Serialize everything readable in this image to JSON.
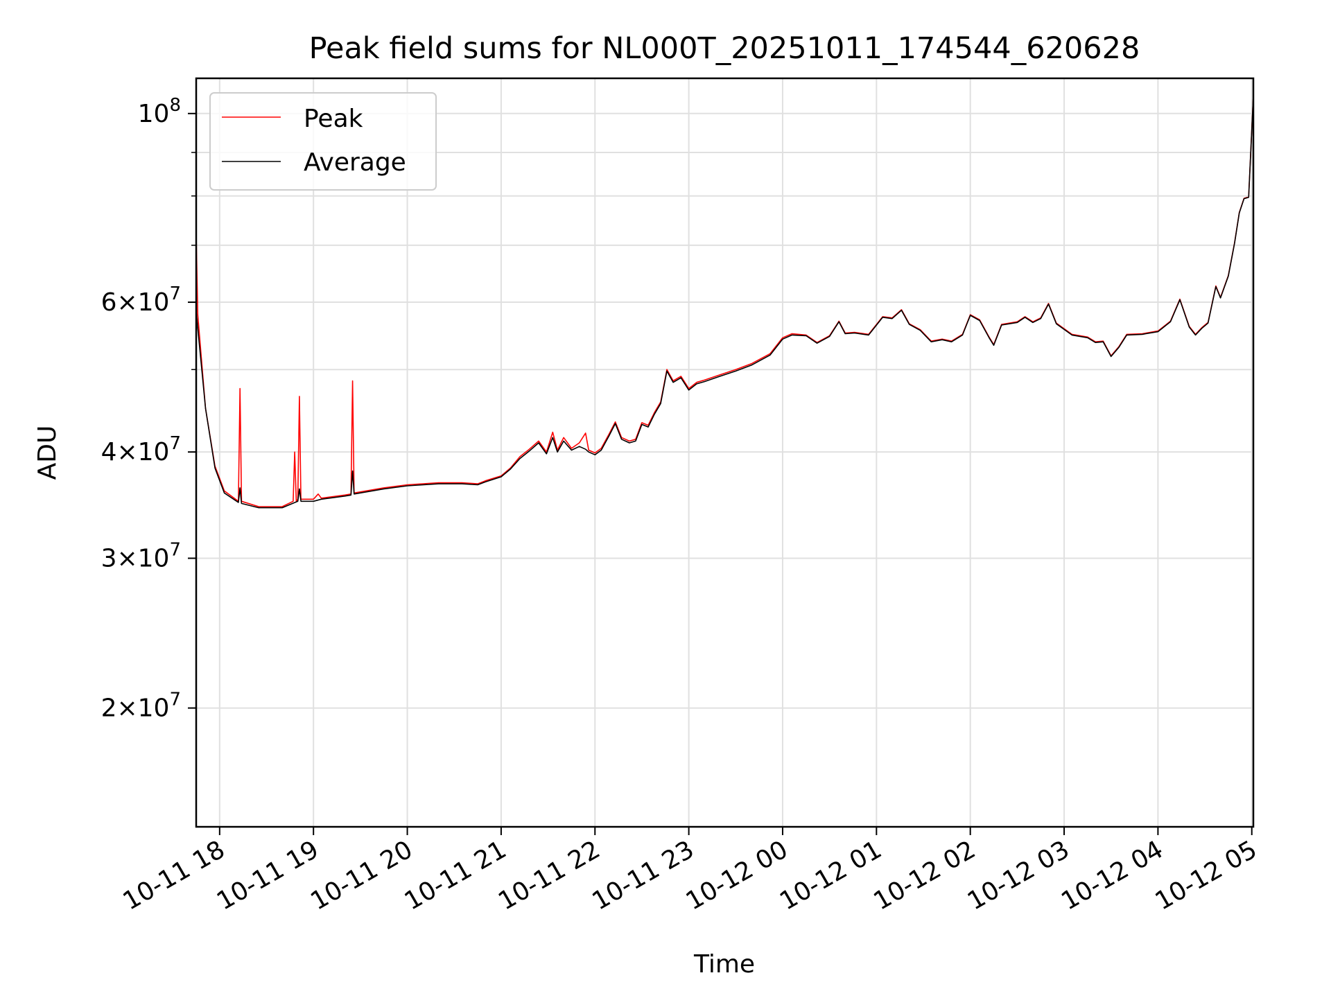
{
  "chart_data": {
    "type": "line",
    "title": "Peak field sums for NL000T_20251011_174544_620628",
    "xlabel": "Time",
    "ylabel": "ADU",
    "yscale": "log",
    "ylim": [
      14500000,
      110000000
    ],
    "xlim": [
      "2025-10-11 17:45",
      "2025-10-12 05:01"
    ],
    "grid": true,
    "legend_position": "top-left",
    "x_ticks": [
      {
        "t": "2025-10-11 18:00",
        "label": "10-11 18"
      },
      {
        "t": "2025-10-11 19:00",
        "label": "10-11 19"
      },
      {
        "t": "2025-10-11 20:00",
        "label": "10-11 20"
      },
      {
        "t": "2025-10-11 21:00",
        "label": "10-11 21"
      },
      {
        "t": "2025-10-11 22:00",
        "label": "10-11 22"
      },
      {
        "t": "2025-10-11 23:00",
        "label": "10-11 23"
      },
      {
        "t": "2025-10-12 00:00",
        "label": "10-12 00"
      },
      {
        "t": "2025-10-12 01:00",
        "label": "10-12 01"
      },
      {
        "t": "2025-10-12 02:00",
        "label": "10-12 02"
      },
      {
        "t": "2025-10-12 03:00",
        "label": "10-12 03"
      },
      {
        "t": "2025-10-12 04:00",
        "label": "10-12 04"
      },
      {
        "t": "2025-10-12 05:00",
        "label": "10-12 05"
      }
    ],
    "y_ticks": [
      {
        "value": 20000000,
        "mantissa": "2",
        "base": "10",
        "exp": "7"
      },
      {
        "value": 30000000,
        "mantissa": "3",
        "base": "10",
        "exp": "7"
      },
      {
        "value": 40000000,
        "mantissa": "4",
        "base": "10",
        "exp": "7"
      },
      {
        "value": 60000000,
        "mantissa": "6",
        "base": "10",
        "exp": "7"
      },
      {
        "value": 100000000,
        "mantissa": "",
        "base": "10",
        "exp": "8"
      }
    ],
    "series": [
      {
        "name": "Peak",
        "color": "#ff0000",
        "points": [
          [
            "2025-10-11 17:45",
            60000000
          ],
          [
            "2025-10-11 17:45",
            72000000
          ],
          [
            "2025-10-11 17:46",
            58000000
          ],
          [
            "2025-10-11 17:51",
            45000000
          ],
          [
            "2025-10-11 17:57",
            38500000
          ],
          [
            "2025-10-11 18:03",
            36000000
          ],
          [
            "2025-10-11 18:12",
            35000000
          ],
          [
            "2025-10-11 18:13",
            47500000
          ],
          [
            "2025-10-11 18:14",
            35000000
          ],
          [
            "2025-10-11 18:25",
            34500000
          ],
          [
            "2025-10-11 18:40",
            34500000
          ],
          [
            "2025-10-11 18:47",
            35000000
          ],
          [
            "2025-10-11 18:48",
            40000000
          ],
          [
            "2025-10-11 18:49",
            35000000
          ],
          [
            "2025-10-11 18:50",
            35200000
          ],
          [
            "2025-10-11 18:51",
            46500000
          ],
          [
            "2025-10-11 18:52",
            35200000
          ],
          [
            "2025-10-11 19:00",
            35200000
          ],
          [
            "2025-10-11 19:03",
            35700000
          ],
          [
            "2025-10-11 19:05",
            35300000
          ],
          [
            "2025-10-11 19:20",
            35600000
          ],
          [
            "2025-10-11 19:24",
            35700000
          ],
          [
            "2025-10-11 19:25",
            48500000
          ],
          [
            "2025-10-11 19:26",
            35800000
          ],
          [
            "2025-10-11 19:45",
            36300000
          ],
          [
            "2025-10-11 20:00",
            36600000
          ],
          [
            "2025-10-11 20:20",
            36800000
          ],
          [
            "2025-10-11 20:35",
            36800000
          ],
          [
            "2025-10-11 20:45",
            36700000
          ],
          [
            "2025-10-11 20:50",
            37000000
          ],
          [
            "2025-10-11 21:00",
            37500000
          ],
          [
            "2025-10-11 21:06",
            38300000
          ],
          [
            "2025-10-11 21:12",
            39500000
          ],
          [
            "2025-10-11 21:18",
            40300000
          ],
          [
            "2025-10-11 21:24",
            41200000
          ],
          [
            "2025-10-11 21:29",
            40000000
          ],
          [
            "2025-10-11 21:33",
            42200000
          ],
          [
            "2025-10-11 21:36",
            40200000
          ],
          [
            "2025-10-11 21:40",
            41600000
          ],
          [
            "2025-10-11 21:45",
            40400000
          ],
          [
            "2025-10-11 21:50",
            41000000
          ],
          [
            "2025-10-11 21:54",
            42100000
          ],
          [
            "2025-10-11 21:56",
            40200000
          ],
          [
            "2025-10-11 22:00",
            39900000
          ],
          [
            "2025-10-11 22:04",
            40400000
          ],
          [
            "2025-10-11 22:09",
            42000000
          ],
          [
            "2025-10-11 22:13",
            43400000
          ],
          [
            "2025-10-11 22:17",
            41600000
          ],
          [
            "2025-10-11 22:22",
            41200000
          ],
          [
            "2025-10-11 22:26",
            41400000
          ],
          [
            "2025-10-11 22:30",
            43300000
          ],
          [
            "2025-10-11 22:34",
            43000000
          ],
          [
            "2025-10-11 22:38",
            44500000
          ],
          [
            "2025-10-11 22:42",
            45800000
          ],
          [
            "2025-10-11 22:46",
            50000000
          ],
          [
            "2025-10-11 22:50",
            48500000
          ],
          [
            "2025-10-11 22:55",
            49100000
          ],
          [
            "2025-10-11 23:00",
            47500000
          ],
          [
            "2025-10-11 23:05",
            48300000
          ],
          [
            "2025-10-11 23:10",
            48600000
          ],
          [
            "2025-10-11 23:20",
            49300000
          ],
          [
            "2025-10-11 23:30",
            50000000
          ],
          [
            "2025-10-11 23:40",
            50800000
          ],
          [
            "2025-10-11 23:52",
            52200000
          ],
          [
            "2025-10-12 00:00",
            54500000
          ],
          [
            "2025-10-12 00:06",
            55100000
          ],
          [
            "2025-10-12 00:15",
            54900000
          ],
          [
            "2025-10-12 00:22",
            53800000
          ],
          [
            "2025-10-12 00:30",
            54800000
          ],
          [
            "2025-10-12 00:36",
            57000000
          ],
          [
            "2025-10-12 00:40",
            55200000
          ],
          [
            "2025-10-12 00:46",
            55300000
          ],
          [
            "2025-10-12 00:55",
            55000000
          ],
          [
            "2025-10-12 01:04",
            57700000
          ],
          [
            "2025-10-12 01:10",
            57500000
          ],
          [
            "2025-10-12 01:16",
            58800000
          ],
          [
            "2025-10-12 01:21",
            56600000
          ],
          [
            "2025-10-12 01:28",
            55700000
          ],
          [
            "2025-10-12 01:35",
            54000000
          ],
          [
            "2025-10-12 01:42",
            54300000
          ],
          [
            "2025-10-12 01:48",
            54000000
          ],
          [
            "2025-10-12 01:55",
            55000000
          ],
          [
            "2025-10-12 02:00",
            58000000
          ],
          [
            "2025-10-12 02:06",
            57200000
          ],
          [
            "2025-10-12 02:12",
            54600000
          ],
          [
            "2025-10-12 02:15",
            53500000
          ],
          [
            "2025-10-12 02:20",
            56500000
          ],
          [
            "2025-10-12 02:30",
            56900000
          ],
          [
            "2025-10-12 02:35",
            57700000
          ],
          [
            "2025-10-12 02:40",
            56900000
          ],
          [
            "2025-10-12 02:45",
            57500000
          ],
          [
            "2025-10-12 02:50",
            59800000
          ],
          [
            "2025-10-12 02:55",
            56700000
          ],
          [
            "2025-10-12 03:05",
            55000000
          ],
          [
            "2025-10-12 03:15",
            54600000
          ],
          [
            "2025-10-12 03:20",
            53900000
          ],
          [
            "2025-10-12 03:25",
            54000000
          ],
          [
            "2025-10-12 03:30",
            51900000
          ],
          [
            "2025-10-12 03:35",
            53200000
          ],
          [
            "2025-10-12 03:40",
            55000000
          ],
          [
            "2025-10-12 03:50",
            55100000
          ],
          [
            "2025-10-12 04:00",
            55500000
          ],
          [
            "2025-10-12 04:08",
            57000000
          ],
          [
            "2025-10-12 04:14",
            60500000
          ],
          [
            "2025-10-12 04:20",
            56200000
          ],
          [
            "2025-10-12 04:24",
            55000000
          ],
          [
            "2025-10-12 04:28",
            56000000
          ],
          [
            "2025-10-12 04:32",
            56800000
          ],
          [
            "2025-10-12 04:37",
            62700000
          ],
          [
            "2025-10-12 04:40",
            60800000
          ],
          [
            "2025-10-12 04:45",
            64500000
          ],
          [
            "2025-10-12 04:49",
            70500000
          ],
          [
            "2025-10-12 04:52",
            76500000
          ],
          [
            "2025-10-12 04:55",
            79500000
          ],
          [
            "2025-10-12 04:58",
            79800000
          ],
          [
            "2025-10-12 05:01",
            105000000
          ]
        ]
      },
      {
        "name": "Average",
        "color": "#000000",
        "points": [
          [
            "2025-10-11 17:45",
            58500000
          ],
          [
            "2025-10-11 17:51",
            45000000
          ],
          [
            "2025-10-11 17:57",
            38300000
          ],
          [
            "2025-10-11 18:03",
            35800000
          ],
          [
            "2025-10-11 18:12",
            34900000
          ],
          [
            "2025-10-11 18:13",
            36300000
          ],
          [
            "2025-10-11 18:14",
            34800000
          ],
          [
            "2025-10-11 18:25",
            34400000
          ],
          [
            "2025-10-11 18:40",
            34400000
          ],
          [
            "2025-10-11 18:50",
            35000000
          ],
          [
            "2025-10-11 18:51",
            36200000
          ],
          [
            "2025-10-11 18:52",
            35000000
          ],
          [
            "2025-10-11 19:00",
            35000000
          ],
          [
            "2025-10-11 19:05",
            35200000
          ],
          [
            "2025-10-11 19:20",
            35500000
          ],
          [
            "2025-10-11 19:24",
            35600000
          ],
          [
            "2025-10-11 19:25",
            38000000
          ],
          [
            "2025-10-11 19:26",
            35700000
          ],
          [
            "2025-10-11 19:45",
            36200000
          ],
          [
            "2025-10-11 20:00",
            36500000
          ],
          [
            "2025-10-11 20:20",
            36700000
          ],
          [
            "2025-10-11 20:35",
            36700000
          ],
          [
            "2025-10-11 20:45",
            36600000
          ],
          [
            "2025-10-11 20:50",
            36900000
          ],
          [
            "2025-10-11 21:00",
            37400000
          ],
          [
            "2025-10-11 21:06",
            38200000
          ],
          [
            "2025-10-11 21:12",
            39300000
          ],
          [
            "2025-10-11 21:18",
            40100000
          ],
          [
            "2025-10-11 21:24",
            41000000
          ],
          [
            "2025-10-11 21:29",
            39800000
          ],
          [
            "2025-10-11 21:33",
            41600000
          ],
          [
            "2025-10-11 21:36",
            40000000
          ],
          [
            "2025-10-11 21:40",
            41200000
          ],
          [
            "2025-10-11 21:45",
            40200000
          ],
          [
            "2025-10-11 21:50",
            40600000
          ],
          [
            "2025-10-11 21:54",
            40300000
          ],
          [
            "2025-10-11 21:56",
            40000000
          ],
          [
            "2025-10-11 22:00",
            39700000
          ],
          [
            "2025-10-11 22:04",
            40200000
          ],
          [
            "2025-10-11 22:09",
            41800000
          ],
          [
            "2025-10-11 22:13",
            43200000
          ],
          [
            "2025-10-11 22:17",
            41400000
          ],
          [
            "2025-10-11 22:22",
            41000000
          ],
          [
            "2025-10-11 22:26",
            41200000
          ],
          [
            "2025-10-11 22:30",
            43100000
          ],
          [
            "2025-10-11 22:34",
            42800000
          ],
          [
            "2025-10-11 22:38",
            44300000
          ],
          [
            "2025-10-11 22:42",
            45600000
          ],
          [
            "2025-10-11 22:46",
            49800000
          ],
          [
            "2025-10-11 22:50",
            48300000
          ],
          [
            "2025-10-11 22:55",
            48900000
          ],
          [
            "2025-10-11 23:00",
            47300000
          ],
          [
            "2025-10-11 23:05",
            48100000
          ],
          [
            "2025-10-11 23:10",
            48400000
          ],
          [
            "2025-10-11 23:20",
            49100000
          ],
          [
            "2025-10-11 23:30",
            49800000
          ],
          [
            "2025-10-11 23:40",
            50600000
          ],
          [
            "2025-10-11 23:52",
            52000000
          ],
          [
            "2025-10-12 00:00",
            54300000
          ],
          [
            "2025-10-12 00:06",
            54900000
          ],
          [
            "2025-10-12 00:15",
            54800000
          ],
          [
            "2025-10-12 00:22",
            53700000
          ],
          [
            "2025-10-12 00:30",
            54700000
          ],
          [
            "2025-10-12 00:36",
            56900000
          ],
          [
            "2025-10-12 00:40",
            55100000
          ],
          [
            "2025-10-12 00:46",
            55200000
          ],
          [
            "2025-10-12 00:55",
            54900000
          ],
          [
            "2025-10-12 01:04",
            57600000
          ],
          [
            "2025-10-12 01:10",
            57400000
          ],
          [
            "2025-10-12 01:16",
            58700000
          ],
          [
            "2025-10-12 01:21",
            56500000
          ],
          [
            "2025-10-12 01:28",
            55600000
          ],
          [
            "2025-10-12 01:35",
            53900000
          ],
          [
            "2025-10-12 01:42",
            54200000
          ],
          [
            "2025-10-12 01:48",
            53900000
          ],
          [
            "2025-10-12 01:55",
            54900000
          ],
          [
            "2025-10-12 02:00",
            57900000
          ],
          [
            "2025-10-12 02:06",
            57100000
          ],
          [
            "2025-10-12 02:12",
            54500000
          ],
          [
            "2025-10-12 02:15",
            53400000
          ],
          [
            "2025-10-12 02:20",
            56400000
          ],
          [
            "2025-10-12 02:30",
            56800000
          ],
          [
            "2025-10-12 02:35",
            57600000
          ],
          [
            "2025-10-12 02:40",
            56800000
          ],
          [
            "2025-10-12 02:45",
            57400000
          ],
          [
            "2025-10-12 02:50",
            59700000
          ],
          [
            "2025-10-12 02:55",
            56600000
          ],
          [
            "2025-10-12 03:05",
            54900000
          ],
          [
            "2025-10-12 03:15",
            54500000
          ],
          [
            "2025-10-12 03:20",
            53800000
          ],
          [
            "2025-10-12 03:25",
            53900000
          ],
          [
            "2025-10-12 03:30",
            51800000
          ],
          [
            "2025-10-12 03:35",
            53100000
          ],
          [
            "2025-10-12 03:40",
            54900000
          ],
          [
            "2025-10-12 03:50",
            55000000
          ],
          [
            "2025-10-12 04:00",
            55400000
          ],
          [
            "2025-10-12 04:08",
            56900000
          ],
          [
            "2025-10-12 04:14",
            60400000
          ],
          [
            "2025-10-12 04:20",
            56100000
          ],
          [
            "2025-10-12 04:24",
            54900000
          ],
          [
            "2025-10-12 04:28",
            55900000
          ],
          [
            "2025-10-12 04:32",
            56700000
          ],
          [
            "2025-10-12 04:37",
            62600000
          ],
          [
            "2025-10-12 04:40",
            60700000
          ],
          [
            "2025-10-12 04:45",
            64400000
          ],
          [
            "2025-10-12 04:49",
            70400000
          ],
          [
            "2025-10-12 04:52",
            76400000
          ],
          [
            "2025-10-12 04:55",
            79400000
          ],
          [
            "2025-10-12 04:58",
            79700000
          ],
          [
            "2025-10-12 05:01",
            105000000
          ]
        ]
      }
    ]
  }
}
